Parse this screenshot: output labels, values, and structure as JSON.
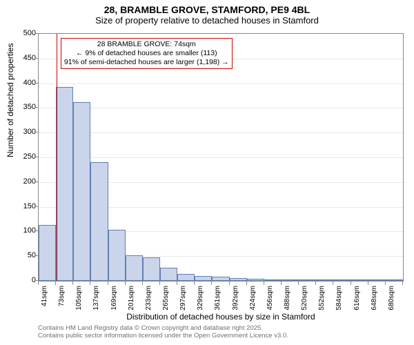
{
  "title": "28, BRAMBLE GROVE, STAMFORD, PE9 4BL",
  "subtitle": "Size of property relative to detached houses in Stamford",
  "y_axis_label": "Number of detached properties",
  "x_axis_label": "Distribution of detached houses by size in Stamford",
  "footer_line1": "Contains HM Land Registry data © Crown copyright and database right 2025.",
  "footer_line2": "Contains public sector information licensed under the Open Government Licence v3.0.",
  "annotation": {
    "line1": "28 BRAMBLE GROVE: 74sqm",
    "line2": "← 9% of detached houses are smaller (113)",
    "line3": "91% of semi-detached houses are larger (1,198) →"
  },
  "chart": {
    "type": "histogram",
    "ylim": [
      0,
      500
    ],
    "ytick_step": 50,
    "x_start": 41,
    "x_step": 32,
    "x_bins": 21,
    "marker_value": 74,
    "bar_fill": "#cad4ea",
    "bar_border": "#6080b0",
    "marker_color": "#cc0000",
    "grid_color": "#e8e8e8",
    "background_color": "#ffffff",
    "values": [
      113,
      393,
      362,
      240,
      103,
      52,
      48,
      26,
      14,
      10,
      8,
      5,
      4,
      3,
      2,
      2,
      2,
      2,
      1,
      1,
      1
    ]
  },
  "x_tick_labels": [
    "41sqm",
    "73sqm",
    "105sqm",
    "137sqm",
    "169sqm",
    "201sqm",
    "233sqm",
    "265sqm",
    "297sqm",
    "329sqm",
    "361sqm",
    "392sqm",
    "424sqm",
    "456sqm",
    "488sqm",
    "520sqm",
    "552sqm",
    "584sqm",
    "616sqm",
    "648sqm",
    "680sqm"
  ]
}
